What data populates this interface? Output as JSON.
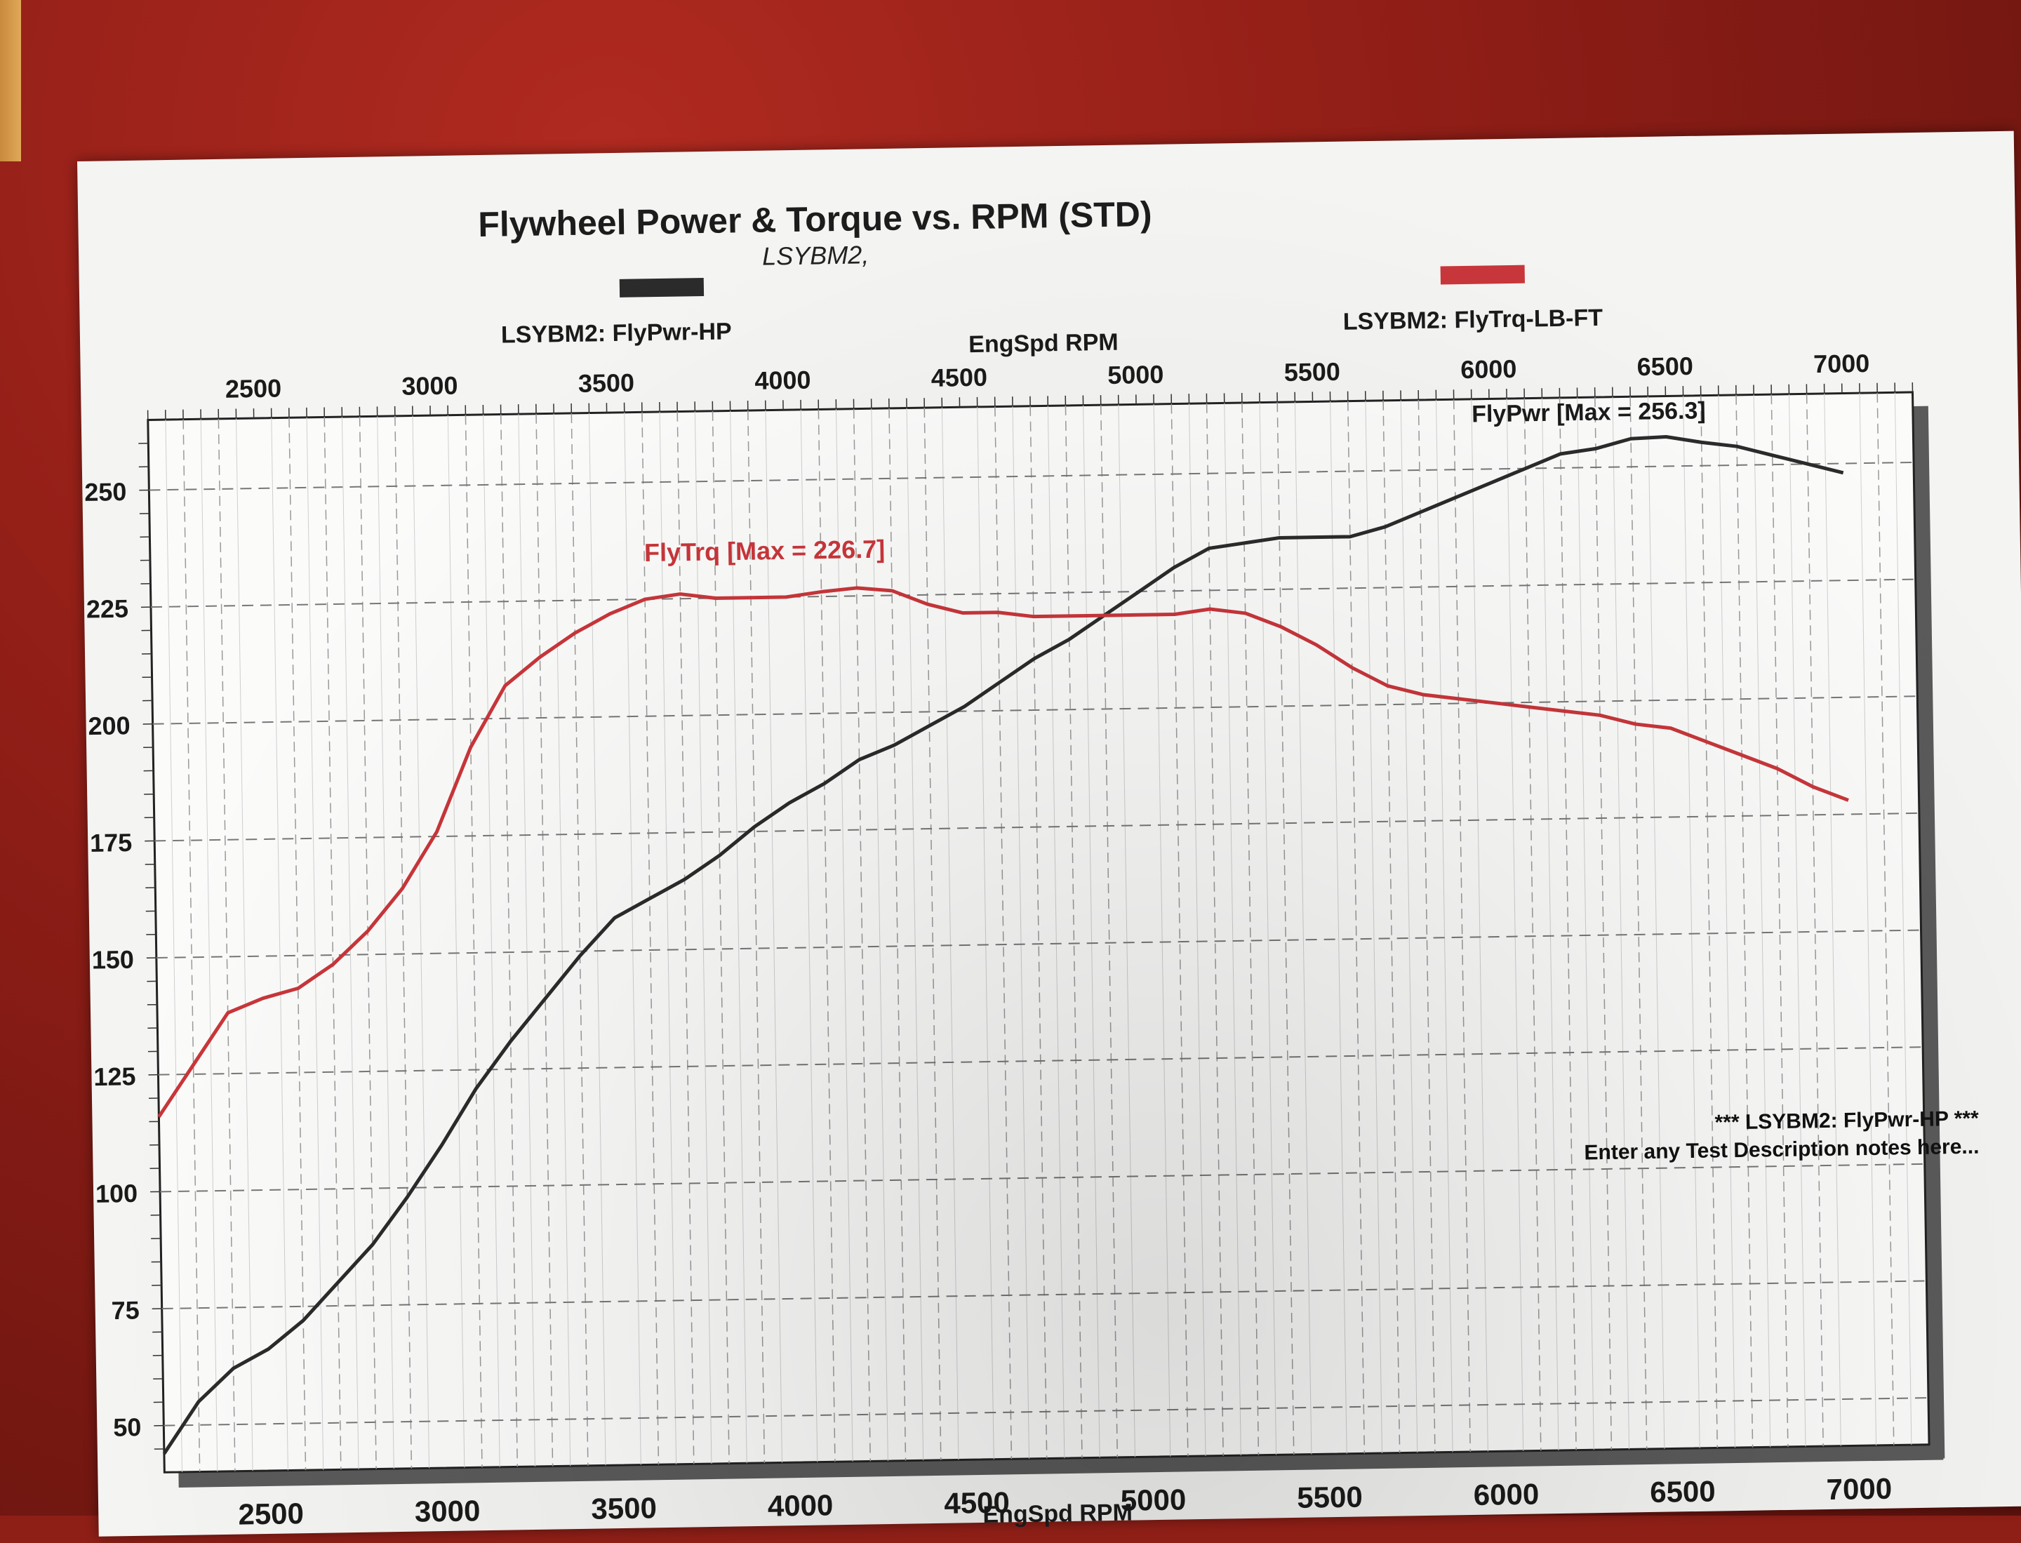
{
  "chart_data": {
    "type": "line",
    "title": "Flywheel Power & Torque vs. RPM (STD)",
    "subtitle": "LSYBM2,",
    "xlabel": "EngSpd RPM",
    "ylabel": "",
    "xlim": [
      2200,
      7200
    ],
    "ylim": [
      40,
      265
    ],
    "x_ticks": [
      "2500",
      "3000",
      "3500",
      "4000",
      "4500",
      "5000",
      "5500",
      "6000",
      "6500",
      "7000"
    ],
    "y_ticks": [
      "50",
      "75",
      "100",
      "125",
      "150",
      "175",
      "200",
      "225",
      "250"
    ],
    "grid": true,
    "legend": "top",
    "series": [
      {
        "name": "LSYBM2: FlyPwr-HP",
        "color": "#2b2b2b",
        "annotation": "FlyPwr [Max = 256.3]",
        "x": [
          2200,
          2300,
          2400,
          2500,
          2600,
          2700,
          2800,
          2900,
          3000,
          3100,
          3200,
          3300,
          3400,
          3500,
          3600,
          3700,
          3800,
          3900,
          4000,
          4100,
          4200,
          4300,
          4400,
          4500,
          4600,
          4700,
          4800,
          4900,
          5000,
          5100,
          5200,
          5300,
          5400,
          5500,
          5600,
          5700,
          5800,
          5900,
          6000,
          6100,
          6200,
          6300,
          6400,
          6500,
          6600,
          6700,
          6800,
          6900,
          7000
        ],
        "y": [
          44,
          55,
          62,
          66,
          72,
          80,
          88,
          98,
          109,
          121,
          131,
          140,
          149,
          157,
          161,
          165,
          170,
          176,
          181,
          185,
          190,
          193,
          197,
          201,
          206,
          211,
          215,
          220,
          225,
          230,
          234,
          235,
          236,
          236,
          236,
          238,
          241,
          244,
          247,
          250,
          253,
          254,
          256,
          256.3,
          255,
          254,
          252,
          250,
          248
        ]
      },
      {
        "name": "LSYBM2: FlyTrq-LB-FT",
        "color": "#c8363a",
        "annotation": "FlyTrq [Max = 226.7]",
        "x": [
          2200,
          2300,
          2400,
          2500,
          2600,
          2700,
          2800,
          2900,
          3000,
          3100,
          3200,
          3300,
          3400,
          3500,
          3600,
          3700,
          3800,
          3900,
          4000,
          4100,
          4200,
          4300,
          4400,
          4500,
          4600,
          4700,
          4800,
          4900,
          5000,
          5100,
          5200,
          5300,
          5400,
          5500,
          5600,
          5700,
          5800,
          5900,
          6000,
          6100,
          6200,
          6300,
          6400,
          6500,
          6600,
          6700,
          6800,
          6900,
          7000
        ],
        "y": [
          116,
          127,
          138,
          141,
          143,
          148,
          155,
          164,
          176,
          194,
          207,
          213,
          218,
          222,
          225,
          226,
          225,
          225,
          225,
          226,
          226.7,
          226,
          223,
          221,
          221,
          220,
          220,
          220,
          220,
          220,
          221,
          220,
          217,
          213,
          208,
          204,
          202,
          201,
          200,
          199,
          198,
          197,
          195,
          194,
          191,
          188,
          185,
          181,
          178
        ]
      }
    ]
  },
  "notes": {
    "line1": "*** LSYBM2: FlyPwr-HP      ***",
    "line2": "Enter any Test Description notes here..."
  }
}
